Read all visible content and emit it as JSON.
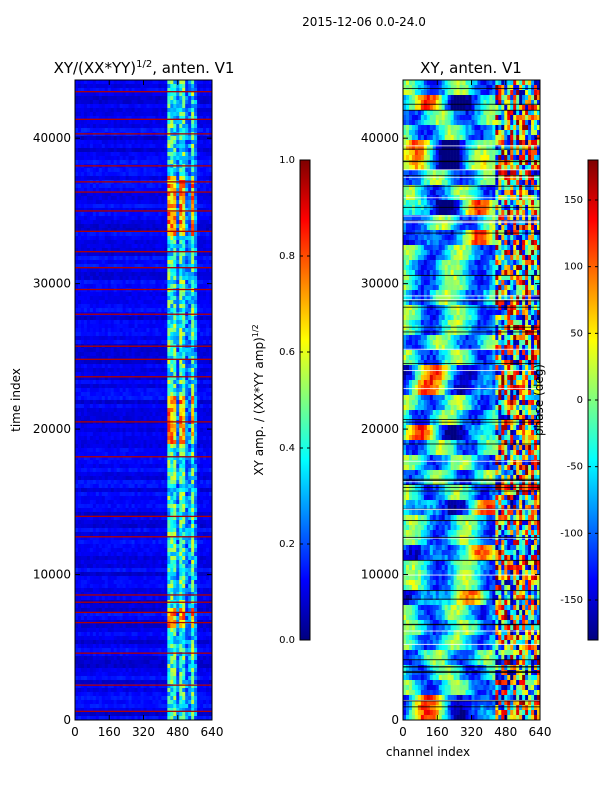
{
  "suptitle": "2015-12-06 0.0-24.0",
  "colormap": [
    "#00007f",
    "#0000ff",
    "#007fff",
    "#00ffff",
    "#7fff7f",
    "#ffff00",
    "#ff7f00",
    "#ff0000",
    "#7f0000"
  ],
  "chart_data": [
    {
      "type": "heatmap",
      "title": "XY/(XX*YY)",
      "title_exponent": "1/2",
      "title_suffix": ", anten. V1",
      "xlabel": "",
      "ylabel": "time index",
      "xlim": [
        0,
        640
      ],
      "ylim": [
        0,
        44000
      ],
      "xticks": [
        "0",
        "160",
        "320",
        "480",
        "640"
      ],
      "yticks": [
        "0",
        "10000",
        "20000",
        "30000",
        "40000"
      ],
      "colorbar": {
        "label": "XY amp. / (XX*YY amp)",
        "label_exponent": "1/2",
        "range": [
          0.0,
          1.0
        ],
        "ticks": [
          "0.0",
          "0.2",
          "0.4",
          "0.6",
          "0.8",
          "1.0"
        ]
      },
      "flagged_rows": [
        600,
        2400,
        4600,
        6700,
        7400,
        8100,
        8600,
        12600,
        14000,
        18100,
        20500,
        23600,
        24800,
        25700,
        27900,
        29600,
        31100,
        32200,
        33600,
        35000,
        36300,
        37000,
        38100,
        40300,
        41300,
        43200
      ]
    },
    {
      "type": "heatmap",
      "title": "XY, anten. V1",
      "xlabel": "channel index",
      "ylabel": "",
      "xlim": [
        0,
        640
      ],
      "ylim": [
        0,
        44000
      ],
      "xticks": [
        "0",
        "160",
        "320",
        "480",
        "640"
      ],
      "yticks": [
        "0",
        "10000",
        "20000",
        "30000",
        "40000"
      ],
      "colorbar": {
        "label": "phase (deg)",
        "range": [
          -180,
          180
        ],
        "ticks": [
          "-150",
          "-100",
          "-50",
          "0",
          "50",
          "100",
          "150"
        ]
      }
    }
  ]
}
